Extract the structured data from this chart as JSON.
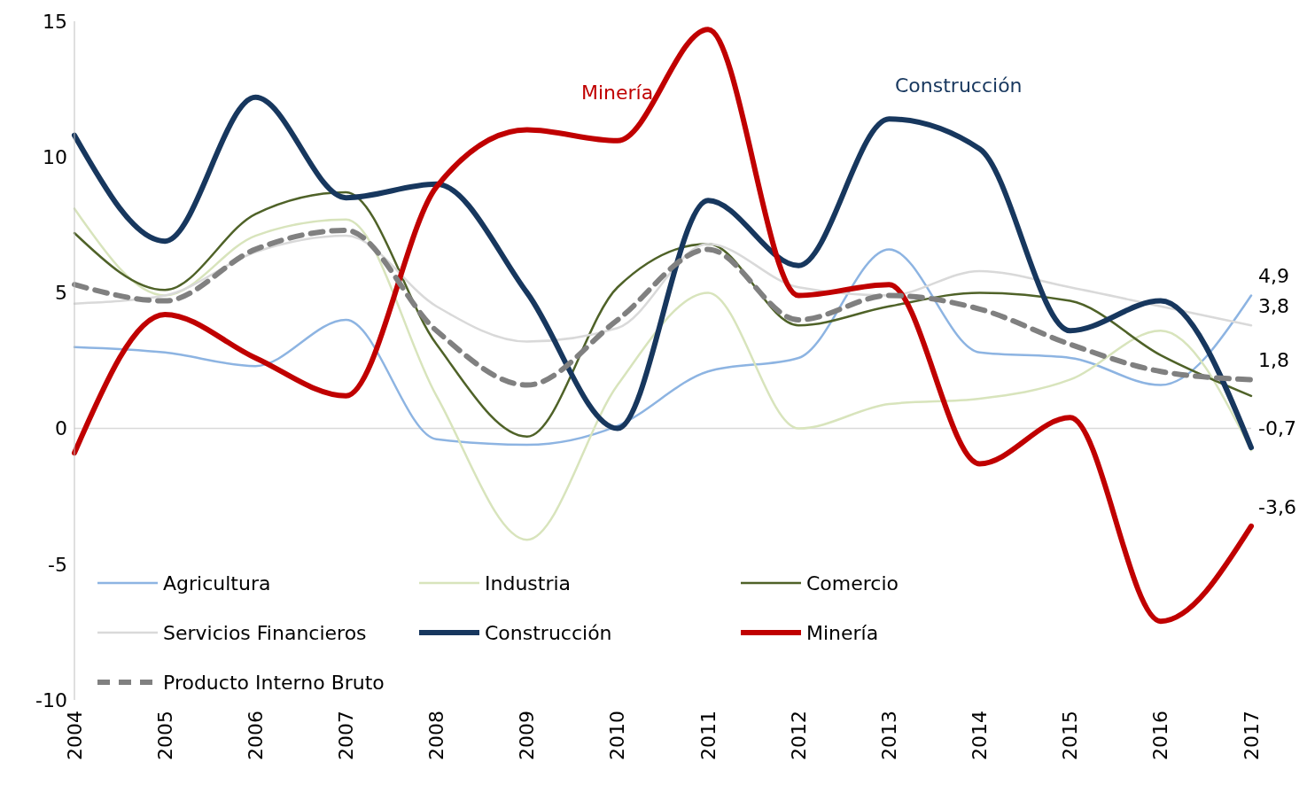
{
  "chart_data": {
    "type": "line",
    "categories": [
      "2004",
      "2005",
      "2006",
      "2007",
      "2008",
      "2009",
      "2010",
      "2011",
      "2012",
      "2013",
      "2014",
      "2015",
      "2016",
      "2017"
    ],
    "series": [
      {
        "name": "Agricultura",
        "color": "#8db4e2",
        "values": [
          3.0,
          2.8,
          2.3,
          4.0,
          -0.4,
          -0.6,
          0.1,
          2.1,
          2.6,
          6.6,
          2.8,
          2.6,
          1.6,
          4.9
        ],
        "value_labels": [
          null,
          null,
          null,
          null,
          null,
          null,
          null,
          null,
          null,
          null,
          null,
          null,
          null,
          "4,9"
        ]
      },
      {
        "name": "Industria",
        "color": "#d8e4bc",
        "values": [
          8.1,
          4.9,
          7.1,
          7.7,
          1.2,
          -4.1,
          1.6,
          5.0,
          0.0,
          0.9,
          1.1,
          1.8,
          3.6,
          -0.8
        ]
      },
      {
        "name": "Comercio",
        "color": "#4f6228",
        "values": [
          7.2,
          5.1,
          7.9,
          8.7,
          3.1,
          -0.3,
          5.2,
          6.8,
          3.8,
          4.5,
          5.0,
          4.7,
          2.7,
          1.2
        ]
      },
      {
        "name": "Servicios Financieros",
        "color": "#d9d9d9",
        "values": [
          4.6,
          4.9,
          6.5,
          7.1,
          4.5,
          3.2,
          3.7,
          6.8,
          5.2,
          4.9,
          5.8,
          5.2,
          4.5,
          3.8
        ],
        "value_labels": [
          null,
          null,
          null,
          null,
          null,
          null,
          null,
          null,
          null,
          null,
          null,
          null,
          null,
          "3,8"
        ]
      },
      {
        "name": "Construcción",
        "color": "#17375e",
        "values": [
          10.8,
          6.9,
          12.2,
          8.5,
          9.0,
          5.0,
          0.0,
          8.4,
          6.0,
          11.4,
          10.3,
          3.6,
          4.7,
          -0.7
        ],
        "value_labels": [
          null,
          null,
          null,
          null,
          null,
          null,
          null,
          null,
          null,
          null,
          null,
          null,
          null,
          "-0,7"
        ]
      },
      {
        "name": "Minería",
        "color": "#c00000",
        "values": [
          -0.9,
          4.2,
          2.6,
          1.2,
          8.9,
          11.0,
          10.6,
          14.7,
          4.9,
          5.3,
          -1.3,
          0.4,
          -7.1,
          -3.6
        ],
        "value_labels": [
          null,
          null,
          null,
          null,
          null,
          null,
          null,
          null,
          null,
          null,
          null,
          null,
          null,
          "-3,6"
        ]
      },
      {
        "name": "Producto Interno Bruto",
        "color": "#808080",
        "line_style": "dashed",
        "values": [
          5.3,
          4.7,
          6.6,
          7.3,
          3.6,
          1.6,
          4.0,
          6.6,
          4.0,
          4.9,
          4.4,
          3.1,
          2.1,
          1.8
        ],
        "value_labels": [
          null,
          null,
          null,
          null,
          null,
          null,
          null,
          null,
          null,
          null,
          null,
          null,
          null,
          "1,8"
        ]
      }
    ],
    "annotations": [
      "Minería",
      "Construcción"
    ],
    "ylim": [
      -10,
      15
    ],
    "yticks": [
      -10,
      -5,
      0,
      5,
      10,
      15
    ],
    "ref_lines": [
      {
        "axis": "y",
        "value": 0,
        "color": "#d9d9d9"
      }
    ],
    "grid": false,
    "legend": "bottom left",
    "marker": "none",
    "line_style": "solid"
  }
}
